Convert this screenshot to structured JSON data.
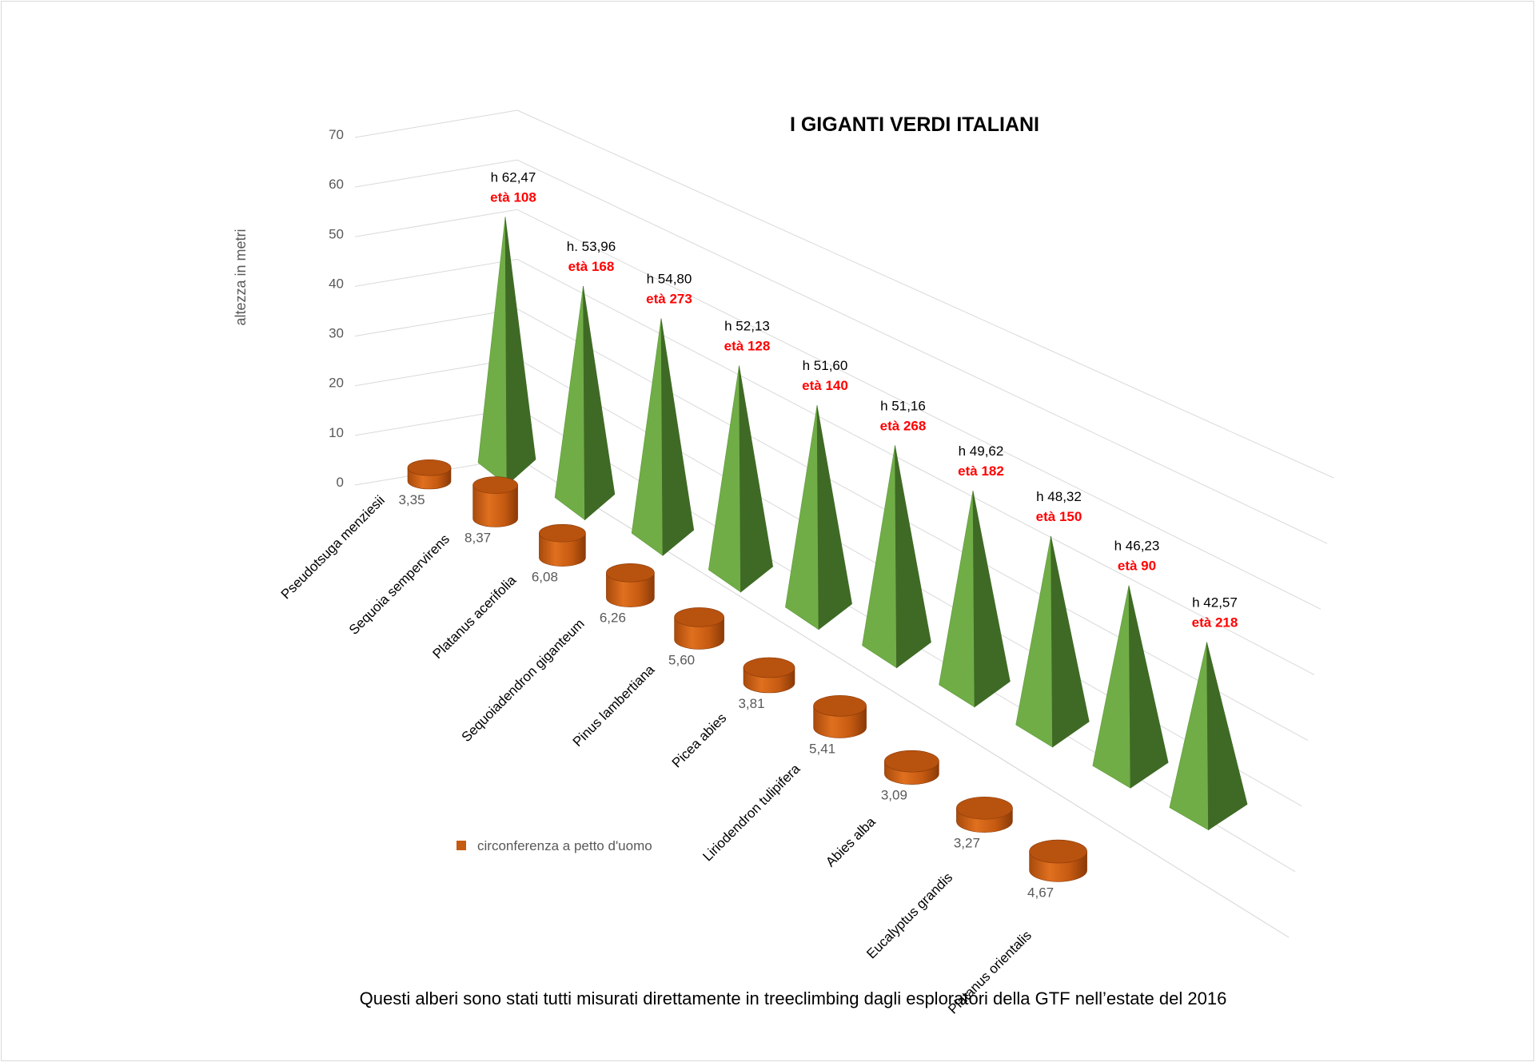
{
  "chart_data": {
    "type": "bar",
    "title": "I GIGANTI VERDI ITALIANI",
    "ylabel": "altezza in metri",
    "ylim": [
      0,
      70
    ],
    "yticks": [
      "0",
      "10",
      "20",
      "30",
      "40",
      "50",
      "60",
      "70"
    ],
    "categories": [
      "Pseudotsuga menziesii",
      "Sequoia sempervirens",
      "Platanus acerifolia",
      "Sequoiadendron giganteum",
      "Pinus lambertiana",
      "Picea abies",
      "Liriodendron tulipifera",
      "Abies alba",
      "Eucalyptus grandis",
      "Platanus orientalis"
    ],
    "series": [
      {
        "name": "circonferenza a petto d'uomo",
        "shape": "cylinder",
        "color": "#c55a11",
        "values": [
          3.35,
          8.37,
          6.08,
          6.26,
          5.6,
          3.81,
          5.41,
          3.09,
          3.27,
          4.67
        ],
        "labels": [
          "3,35",
          "8,37",
          "6,08",
          "6,26",
          "5,60",
          "3,81",
          "5,41",
          "3,09",
          "3,27",
          "4,67"
        ]
      },
      {
        "shape": "pyramid",
        "color": "#70ad47",
        "values": [
          62.47,
          53.96,
          54.8,
          52.13,
          51.6,
          51.16,
          49.62,
          48.32,
          46.23,
          42.57
        ],
        "labels": [
          "h 62,47",
          "h. 53,96",
          "h 54,80",
          "h 52,13",
          "h 51,60",
          "h 51,16",
          "h 49,62",
          "h 48,32",
          "h 46,23",
          "h 42,57"
        ],
        "age_labels": [
          "età 108",
          "età 168",
          "età 273",
          "età 128",
          "età 140",
          "età 268",
          "età 182",
          "età 150",
          "età 90",
          "età 218"
        ],
        "age_color": "#ff0000"
      }
    ],
    "legend": {
      "label": "circonferenza a petto d'uomo",
      "color": "#c55a11",
      "position": "bottom-left"
    },
    "grid": true,
    "footnote": "Questi alberi sono stati tutti misurati direttamente in treeclimbing dagli esploratori della GTF nell’estate del 2016"
  }
}
